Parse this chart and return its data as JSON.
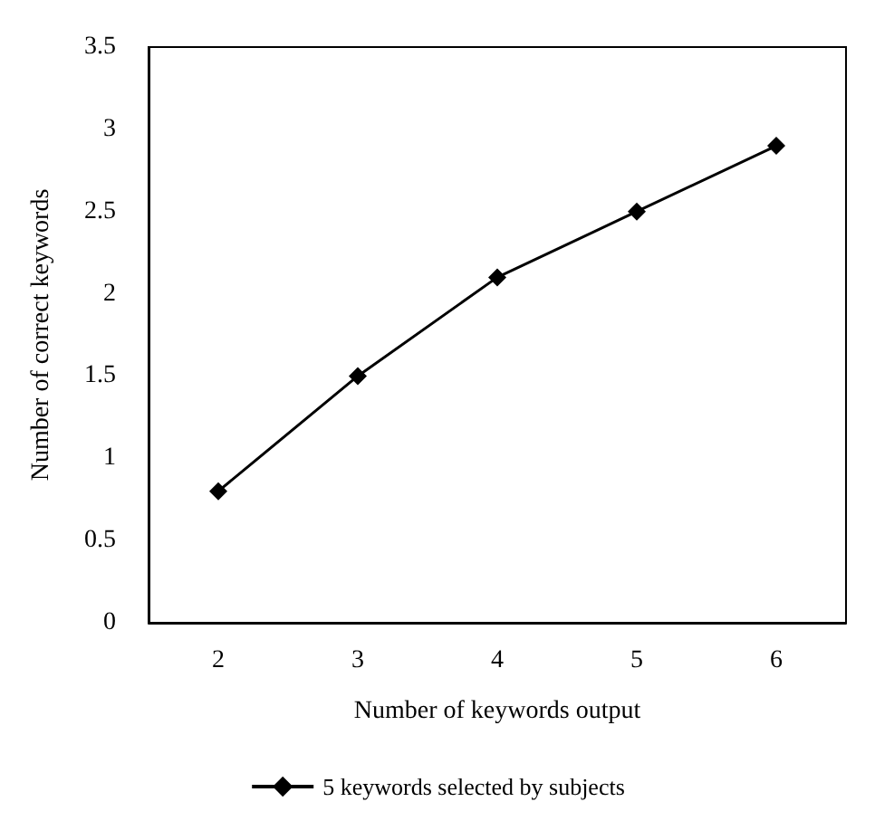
{
  "chart_data": {
    "type": "line",
    "xlabel": "Number of keywords output",
    "ylabel": "Number of correct keywords",
    "categories": [
      "2",
      "3",
      "4",
      "5",
      "6"
    ],
    "series": [
      {
        "name": "5 keywords selected by subjects",
        "color": "#000000",
        "values": [
          0.8,
          1.5,
          2.1,
          2.5,
          2.9
        ]
      }
    ],
    "ylim": [
      0,
      3.5
    ],
    "yticks": [
      0,
      0.5,
      1,
      1.5,
      2,
      2.5,
      3,
      3.5
    ],
    "grid": false,
    "legend": "bottom",
    "marker": "diamond",
    "line_style": "solid"
  }
}
